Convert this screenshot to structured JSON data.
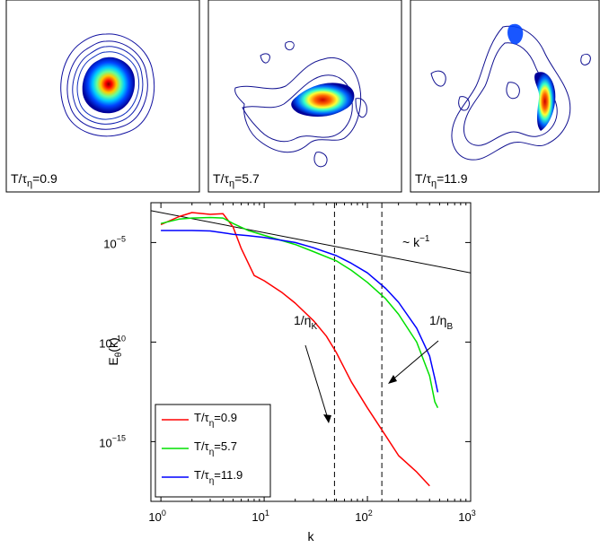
{
  "panels": [
    {
      "label_prefix": "T/τ",
      "label_sub": "η",
      "label_value": "=0.9"
    },
    {
      "label_prefix": "T/τ",
      "label_sub": "η",
      "label_value": "=5.7"
    },
    {
      "label_prefix": "T/τ",
      "label_sub": "η",
      "label_value": "=11.9"
    }
  ],
  "chart_data": {
    "type": "line",
    "x_scale": "log",
    "y_scale": "log",
    "xlabel": "k",
    "ylabel_main": "E",
    "ylabel_sub": "θ",
    "ylabel_tail": "(k)",
    "xlim": [
      0.8,
      1000
    ],
    "ylim": [
      1e-18,
      0.001
    ],
    "x_ticks": [
      {
        "value": 1,
        "base": "10",
        "exp": "0"
      },
      {
        "value": 10,
        "base": "10",
        "exp": "1"
      },
      {
        "value": 100,
        "base": "10",
        "exp": "2"
      },
      {
        "value": 1000,
        "base": "10",
        "exp": "3"
      }
    ],
    "y_ticks": [
      {
        "value": 1e-15,
        "base": "10",
        "exp": "−15"
      },
      {
        "value": 1e-10,
        "base": "10",
        "exp": "−10"
      },
      {
        "value": 1e-05,
        "base": "10",
        "exp": "−5"
      }
    ],
    "series": [
      {
        "name_prefix": "T/τ",
        "name_sub": "η",
        "name_value": "=0.9",
        "color": "#ff0000",
        "points": [
          [
            1,
            8e-05
          ],
          [
            1.5,
            0.0002
          ],
          [
            2,
            0.00032
          ],
          [
            3,
            0.00026
          ],
          [
            4,
            0.00028
          ],
          [
            5,
            6e-05
          ],
          [
            6,
            5e-06
          ],
          [
            8,
            2.2e-07
          ],
          [
            10,
            1.2e-07
          ],
          [
            15,
            3e-08
          ],
          [
            20,
            9e-09
          ],
          [
            30,
            1.2e-09
          ],
          [
            40,
            2e-10
          ],
          [
            50,
            3e-11
          ],
          [
            70,
            1e-12
          ],
          [
            100,
            5e-14
          ],
          [
            150,
            2e-15
          ],
          [
            200,
            2e-16
          ],
          [
            300,
            3e-17
          ],
          [
            400,
            6e-18
          ]
        ]
      },
      {
        "name_prefix": "T/τ",
        "name_sub": "η",
        "name_value": "=5.7",
        "color": "#00e000",
        "points": [
          [
            1,
            9e-05
          ],
          [
            1.5,
            0.00015
          ],
          [
            2,
            0.00017
          ],
          [
            3,
            0.00018
          ],
          [
            4,
            0.00017
          ],
          [
            5,
            9e-05
          ],
          [
            7,
            4e-05
          ],
          [
            10,
            2.3e-05
          ],
          [
            20,
            8e-06
          ],
          [
            30,
            3.5e-06
          ],
          [
            50,
            1.2e-06
          ],
          [
            70,
            4e-07
          ],
          [
            100,
            1e-07
          ],
          [
            150,
            1.5e-08
          ],
          [
            200,
            2.5e-09
          ],
          [
            300,
            1e-10
          ],
          [
            400,
            2e-12
          ],
          [
            450,
            1e-13
          ],
          [
            480,
            5e-14
          ]
        ]
      },
      {
        "name_prefix": "T/τ",
        "name_sub": "η",
        "name_value": "=11.9",
        "color": "#0000ff",
        "points": [
          [
            1,
            4e-05
          ],
          [
            1.5,
            4e-05
          ],
          [
            2,
            4e-05
          ],
          [
            3,
            3.8e-05
          ],
          [
            5,
            2.6e-05
          ],
          [
            7,
            2.2e-05
          ],
          [
            10,
            1.8e-05
          ],
          [
            20,
            1e-05
          ],
          [
            30,
            5.5e-06
          ],
          [
            50,
            2.2e-06
          ],
          [
            70,
            9e-07
          ],
          [
            100,
            3e-07
          ],
          [
            150,
            5e-08
          ],
          [
            200,
            1e-08
          ],
          [
            300,
            5e-10
          ],
          [
            400,
            2e-11
          ],
          [
            450,
            1.5e-12
          ],
          [
            480,
            3e-13
          ]
        ]
      }
    ],
    "reference_line": {
      "label_prefix": "~ k",
      "label_exp": "−1",
      "from": [
        0.8,
        0.0004
      ],
      "to": [
        1000,
        3e-07
      ]
    },
    "vlines": [
      {
        "x": 48,
        "label_prefix": "1/η",
        "label_sub": "K"
      },
      {
        "x": 138,
        "label_prefix": "1/η",
        "label_sub": "B"
      }
    ],
    "legend_position": "bottom-left"
  }
}
